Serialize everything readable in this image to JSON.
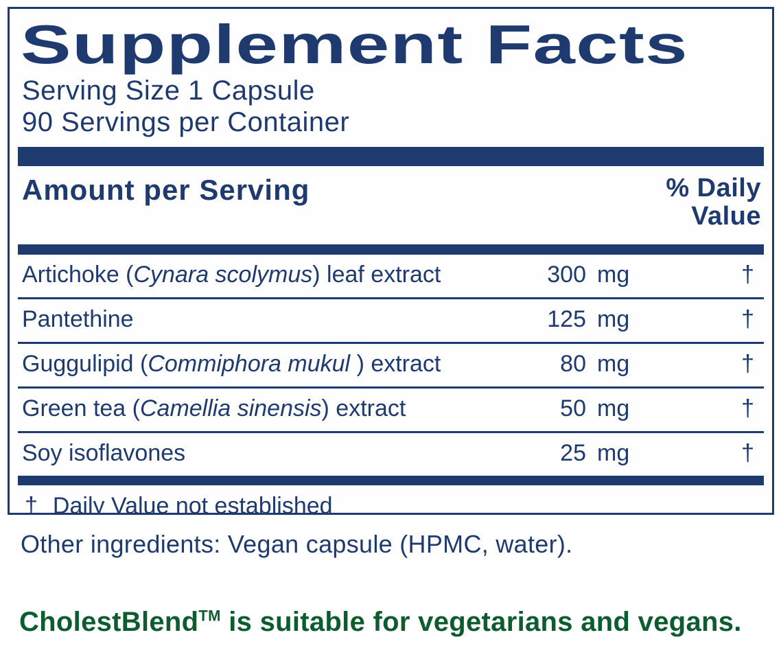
{
  "label": {
    "title": "Supplement Facts",
    "serving_size": "Serving Size 1 Capsule",
    "servings_per_container": "90 Servings per Container",
    "columns": {
      "amount_header": "Amount per Serving",
      "dv_header_line1": "% Daily",
      "dv_header_line2": "Value"
    },
    "rows": [
      {
        "name_prefix": "Artichoke (",
        "name_latin": "Cynara scolymus",
        "name_suffix": ") leaf extract",
        "amount": "300",
        "unit": "mg",
        "daily_value": "†"
      },
      {
        "name_prefix": "Pantethine",
        "name_latin": "",
        "name_suffix": "",
        "amount": "125",
        "unit": "mg",
        "daily_value": "†"
      },
      {
        "name_prefix": "Guggulipid (",
        "name_latin": "Commiphora mukul ",
        "name_suffix": ") extract",
        "amount": "80",
        "unit": "mg",
        "daily_value": "†"
      },
      {
        "name_prefix": "Green tea (",
        "name_latin": "Camellia sinensis",
        "name_suffix": ") extract",
        "amount": "50",
        "unit": "mg",
        "daily_value": "†"
      },
      {
        "name_prefix": "Soy isoflavones",
        "name_latin": "",
        "name_suffix": "",
        "amount": "25",
        "unit": "mg",
        "daily_value": "†"
      }
    ],
    "footnote_symbol": "†",
    "footnote_text": "Daily Value not established",
    "other_ingredients": "Other ingredients: Vegan capsule (HPMC, water).",
    "claim": {
      "brand": "CholestBlend",
      "tm": "TM",
      "text": " is suitable for vegetarians and vegans."
    },
    "colors": {
      "navy": "#1e3a6e",
      "green": "#0d5c2f"
    }
  }
}
